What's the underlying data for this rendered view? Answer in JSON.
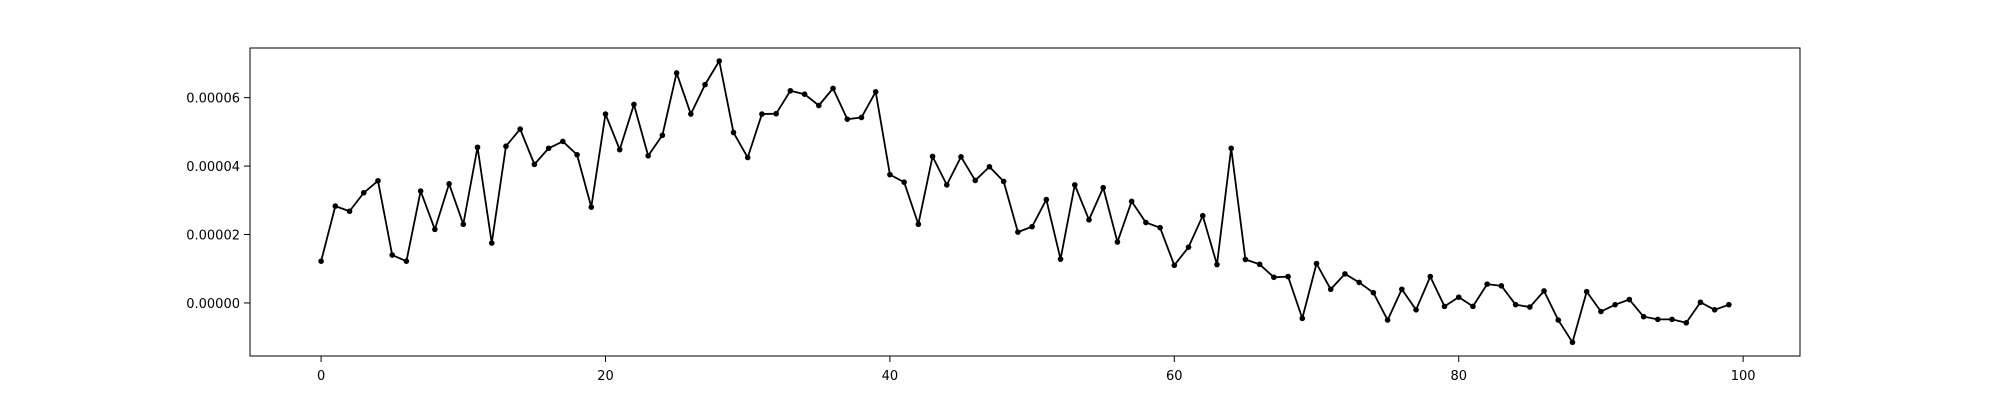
{
  "chart_data": {
    "type": "line",
    "title": "",
    "xlabel": "",
    "ylabel": "",
    "xlim": [
      -5,
      104
    ],
    "ylim": [
      -1.55e-05,
      7.45e-05
    ],
    "grid": false,
    "legend": "none",
    "xticks": [
      0,
      20,
      40,
      60,
      80,
      100
    ],
    "xtick_labels": [
      "0",
      "20",
      "40",
      "60",
      "80",
      "100"
    ],
    "yticks": [
      0,
      2e-05,
      4e-05,
      6e-05
    ],
    "ytick_labels": [
      "0.00000",
      "0.00002",
      "0.00004",
      "0.00006"
    ],
    "series": [
      {
        "name": "series",
        "color": "#000000",
        "marker": "circle",
        "x": [
          0,
          1,
          2,
          3,
          4,
          5,
          6,
          7,
          8,
          9,
          10,
          11,
          12,
          13,
          14,
          15,
          16,
          17,
          18,
          19,
          20,
          21,
          22,
          23,
          24,
          25,
          26,
          27,
          28,
          29,
          30,
          31,
          32,
          33,
          34,
          35,
          36,
          37,
          38,
          39,
          40,
          41,
          42,
          43,
          44,
          45,
          46,
          47,
          48,
          49,
          50,
          51,
          52,
          53,
          54,
          55,
          56,
          57,
          58,
          59,
          60,
          61,
          62,
          63,
          64,
          65,
          66,
          67,
          68,
          69,
          70,
          71,
          72,
          73,
          74,
          75,
          76,
          77,
          78,
          79,
          80,
          81,
          82,
          83,
          84,
          85,
          86,
          87,
          88,
          89,
          90,
          91,
          92,
          93,
          94,
          95,
          96,
          97,
          98,
          99
        ],
        "y": [
          1.22e-05,
          2.83e-05,
          2.68e-05,
          3.22e-05,
          3.57e-05,
          1.4e-05,
          1.22e-05,
          3.27e-05,
          2.15e-05,
          3.48e-05,
          2.3e-05,
          4.55e-05,
          1.75e-05,
          4.58e-05,
          5.08e-05,
          4.05e-05,
          4.52e-05,
          4.72e-05,
          4.33e-05,
          2.8e-05,
          5.52e-05,
          4.48e-05,
          5.8e-05,
          4.3e-05,
          4.9e-05,
          6.72e-05,
          5.52e-05,
          6.38e-05,
          7.07e-05,
          4.98e-05,
          4.25e-05,
          5.52e-05,
          5.53e-05,
          6.2e-05,
          6.1e-05,
          5.77e-05,
          6.27e-05,
          5.37e-05,
          5.42e-05,
          6.17e-05,
          3.75e-05,
          3.53e-05,
          2.3e-05,
          4.28e-05,
          3.45e-05,
          4.27e-05,
          3.58e-05,
          3.98e-05,
          3.55e-05,
          2.07e-05,
          2.23e-05,
          3.02e-05,
          1.28e-05,
          3.45e-05,
          2.43e-05,
          3.37e-05,
          1.78e-05,
          2.97e-05,
          2.35e-05,
          2.2e-05,
          1.1e-05,
          1.63e-05,
          2.55e-05,
          1.12e-05,
          4.52e-05,
          1.27e-05,
          1.13e-05,
          7.5e-06,
          7.7e-06,
          -4.5e-06,
          1.15e-05,
          4e-06,
          8.5e-06,
          6e-06,
          3e-06,
          -5e-06,
          4e-06,
          -2e-06,
          7.7e-06,
          -1e-06,
          1.7e-06,
          -1e-06,
          5.5e-06,
          5e-06,
          -5e-07,
          -1.2e-06,
          3.5e-06,
          -5e-06,
          -1.15e-05,
          3.3e-06,
          -2.5e-06,
          -5e-07,
          1e-06,
          -4e-06,
          -4.8e-06,
          -4.8e-06,
          -5.8e-06,
          2e-07,
          -2e-06,
          -5e-07
        ]
      }
    ]
  }
}
